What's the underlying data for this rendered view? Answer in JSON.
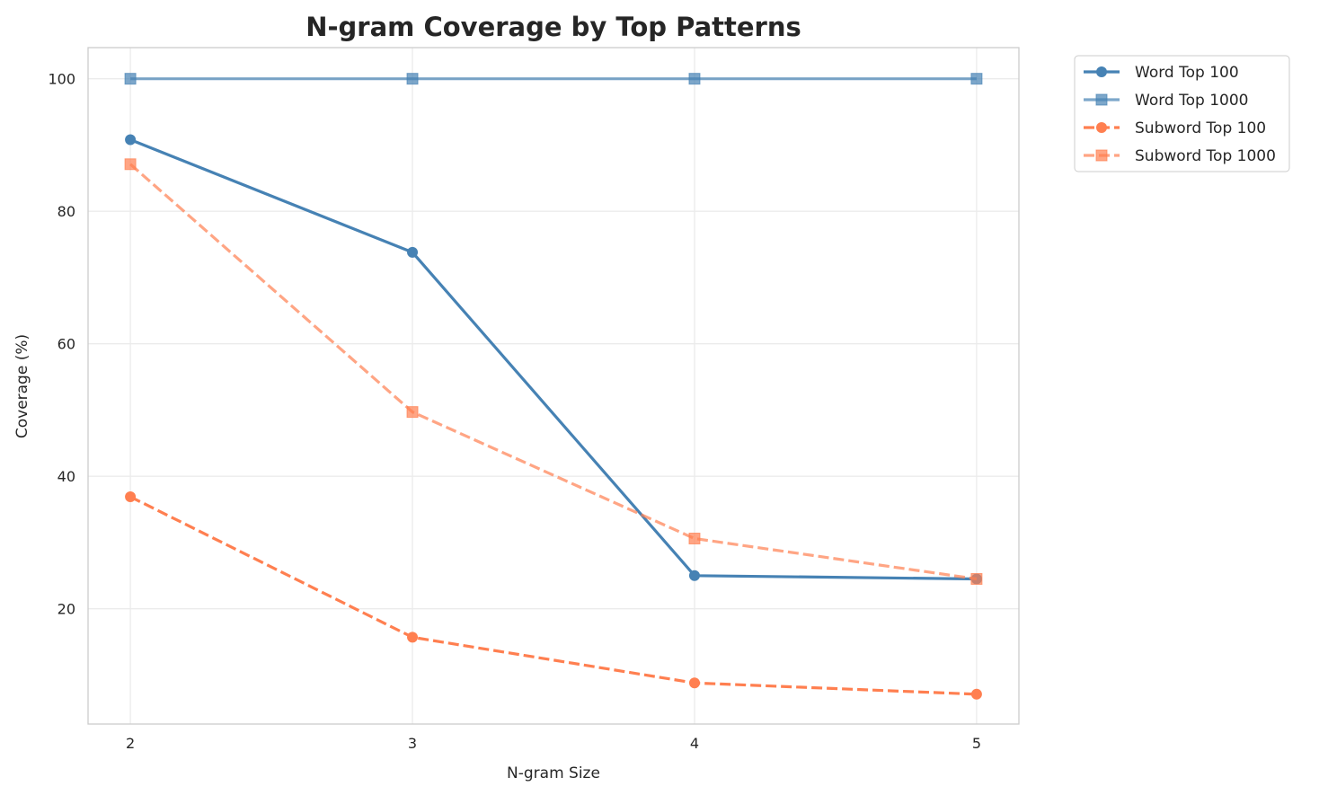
{
  "chart_data": {
    "type": "line",
    "title": "N-gram Coverage by Top Patterns",
    "xlabel": "N-gram Size",
    "ylabel": "Coverage (%)",
    "x": [
      2,
      3,
      4,
      5
    ],
    "xticks": [
      "2",
      "3",
      "4",
      "5"
    ],
    "yticks": [
      "20",
      "40",
      "60",
      "80",
      "100"
    ],
    "xlim": [
      1.85,
      5.15
    ],
    "ylim": [
      2.6,
      104.7
    ],
    "grid": true,
    "legend_position": "outside-top-right",
    "series": [
      {
        "name": "Word Top 100",
        "values": [
          90.8,
          73.8,
          25.0,
          24.5
        ],
        "color": "#4682b4",
        "marker": "circle",
        "dash": "solid",
        "opacity": 1
      },
      {
        "name": "Word Top 1000",
        "values": [
          100,
          100,
          100,
          100
        ],
        "color": "#4682b4",
        "marker": "square",
        "dash": "solid",
        "opacity": 0.7
      },
      {
        "name": "Subword Top 100",
        "values": [
          36.9,
          15.7,
          8.8,
          7.1
        ],
        "color": "#ff7f50",
        "marker": "circle",
        "dash": "dashed",
        "opacity": 1
      },
      {
        "name": "Subword Top 1000",
        "values": [
          87.1,
          49.7,
          30.6,
          24.5
        ],
        "color": "#ff7f50",
        "marker": "square",
        "dash": "dashed",
        "opacity": 0.7
      }
    ]
  }
}
